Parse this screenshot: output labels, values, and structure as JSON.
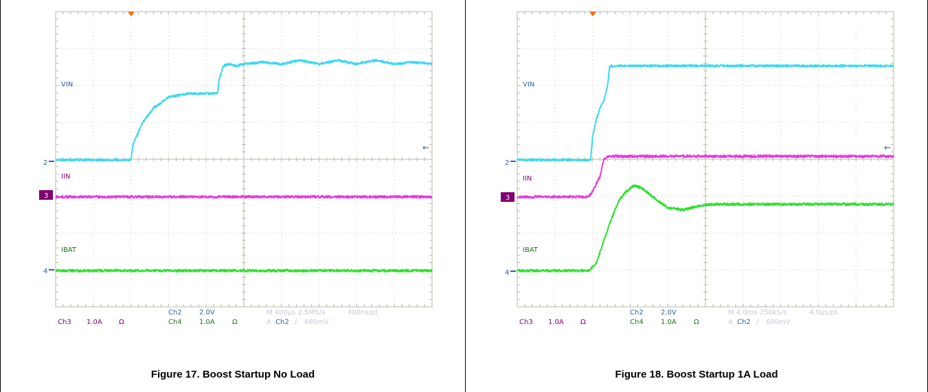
{
  "figures": [
    {
      "caption": "Figure 17. Boost Startup No Load",
      "labels": {
        "vin": "VIN",
        "iin": "IIN",
        "ibat": "IBAT",
        "ch2_marker": "2",
        "ch3_marker": "3",
        "ch4_marker": "4"
      },
      "readout": {
        "ch2": "Ch2",
        "ch2_scale": "2.0V",
        "ch3": "Ch3",
        "ch3_scale": "1.0A",
        "ch3_unit": "Ω",
        "ch4": "Ch4",
        "ch4_scale": "1.0A",
        "ch4_unit": "Ω",
        "timebase": "M 400µs 2.5MS/s",
        "resolution": "400ns/pt",
        "trigger_prefix": "A",
        "trigger_ch": "Ch2",
        "trigger_slope": "∕",
        "trigger_level": "680mV"
      }
    },
    {
      "caption": "Figure 18. Boost Startup 1A Load",
      "labels": {
        "vin": "VIN",
        "iin": "IIN",
        "ibat": "IBAT",
        "ch2_marker": "2",
        "ch3_marker": "3",
        "ch4_marker": "4"
      },
      "readout": {
        "ch2": "Ch2",
        "ch2_scale": "2.0V",
        "ch3": "Ch3",
        "ch3_scale": "1.0A",
        "ch3_unit": "Ω",
        "ch4": "Ch4",
        "ch4_scale": "1.0A",
        "ch4_unit": "Ω",
        "timebase": "M 4.0ms 250kS/s",
        "resolution": "4.0µs/pt",
        "trigger_prefix": "A",
        "trigger_ch": "Ch2",
        "trigger_slope": "∕",
        "trigger_level": "680mV"
      }
    }
  ],
  "chart_data": [
    {
      "type": "line",
      "title": "Figure 17. Boost Startup No Load",
      "xlabel": "",
      "ylabel": "",
      "x_unit": "div",
      "y_unit": "div",
      "xlim": [
        0,
        10
      ],
      "ylim": [
        -4,
        4
      ],
      "grid": true,
      "colors": {
        "VIN": "#3ad8f0",
        "IIN": "#e838e0",
        "IBAT": "#2ee02e"
      },
      "series": [
        {
          "name": "VIN",
          "x": [
            0,
            2.0,
            2.05,
            2.3,
            2.6,
            3.0,
            3.5,
            4.0,
            4.3,
            4.35,
            4.45,
            4.6,
            4.8,
            5.0,
            5.5,
            6.0,
            6.5,
            7.0,
            7.5,
            8.0,
            8.5,
            9.0,
            9.5,
            10.0
          ],
          "y": [
            0.0,
            0.0,
            0.4,
            1.0,
            1.4,
            1.7,
            1.8,
            1.8,
            1.8,
            2.2,
            2.55,
            2.6,
            2.55,
            2.6,
            2.65,
            2.6,
            2.7,
            2.6,
            2.7,
            2.6,
            2.7,
            2.6,
            2.65,
            2.6
          ]
        },
        {
          "name": "IIN",
          "x": [
            0,
            10
          ],
          "y": [
            -1.0,
            -1.0
          ]
        },
        {
          "name": "IBAT",
          "x": [
            0,
            10
          ],
          "y": [
            -3.0,
            -3.0
          ]
        }
      ]
    },
    {
      "type": "line",
      "title": "Figure 18. Boost Startup 1A Load",
      "xlabel": "",
      "ylabel": "",
      "x_unit": "div",
      "y_unit": "div",
      "xlim": [
        0,
        10
      ],
      "ylim": [
        -4,
        4
      ],
      "grid": true,
      "colors": {
        "VIN": "#3ad8f0",
        "IIN": "#e838e0",
        "IBAT": "#2ee02e"
      },
      "series": [
        {
          "name": "VIN",
          "x": [
            0,
            1.95,
            2.0,
            2.1,
            2.2,
            2.3,
            2.4,
            2.45,
            2.5,
            3.0,
            4.0,
            5.0,
            6.0,
            7.0,
            8.0,
            9.0,
            10.0
          ],
          "y": [
            0.0,
            0.0,
            0.6,
            1.1,
            1.4,
            1.6,
            2.0,
            2.5,
            2.55,
            2.55,
            2.55,
            2.55,
            2.55,
            2.55,
            2.55,
            2.55,
            2.55
          ]
        },
        {
          "name": "IIN",
          "x": [
            0,
            1.9,
            2.0,
            2.1,
            2.2,
            2.3,
            2.4,
            10.0
          ],
          "y": [
            -1.0,
            -1.0,
            -0.85,
            -0.65,
            -0.45,
            0.0,
            0.1,
            0.1
          ]
        },
        {
          "name": "IBAT",
          "x": [
            0,
            1.9,
            2.1,
            2.3,
            2.5,
            2.7,
            2.9,
            3.1,
            3.3,
            3.6,
            4.0,
            4.4,
            4.8,
            5.2,
            5.6,
            6.0,
            7.0,
            8.0,
            9.0,
            10.0
          ],
          "y": [
            -3.0,
            -3.0,
            -2.8,
            -2.2,
            -1.6,
            -1.1,
            -0.85,
            -0.7,
            -0.75,
            -1.0,
            -1.3,
            -1.35,
            -1.25,
            -1.2,
            -1.2,
            -1.2,
            -1.2,
            -1.2,
            -1.2,
            -1.2
          ]
        }
      ]
    }
  ]
}
